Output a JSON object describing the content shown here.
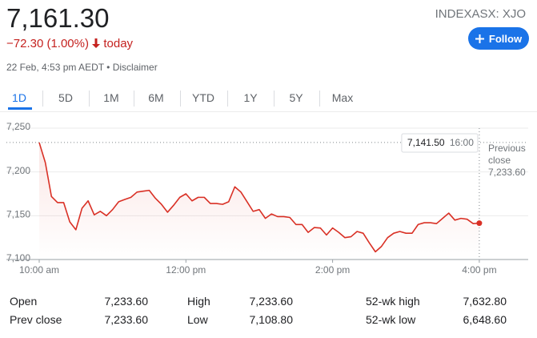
{
  "header": {
    "price": "7,161.30",
    "change": "−72.30 (1.00%)",
    "period": "today",
    "timestamp": "22 Feb, 4:53 pm AEDT • Disclaimer",
    "ticker": "INDEXASX: XJO",
    "follow": "Follow"
  },
  "tabs": [
    "1D",
    "5D",
    "1M",
    "6M",
    "YTD",
    "1Y",
    "5Y",
    "Max"
  ],
  "chart_data": {
    "type": "line",
    "x": [
      600,
      605,
      610,
      615,
      620,
      625,
      630,
      635,
      640,
      645,
      650,
      655,
      660,
      665,
      670,
      675,
      680,
      685,
      690,
      695,
      700,
      705,
      710,
      715,
      720,
      725,
      730,
      735,
      740,
      745,
      750,
      755,
      760,
      765,
      770,
      775,
      780,
      785,
      790,
      795,
      800,
      805,
      810,
      815,
      820,
      825,
      830,
      835,
      840,
      845,
      850,
      855,
      860,
      865,
      870,
      875,
      880,
      885,
      890,
      895,
      900,
      905,
      910,
      915,
      920,
      925,
      930,
      935,
      940,
      945,
      950,
      955,
      960
    ],
    "series": [
      {
        "name": "XJO",
        "color": "#d93025",
        "values": [
          7233.6,
          7210.7,
          7172,
          7165,
          7165,
          7143,
          7134,
          7158.5,
          7167,
          7151,
          7155,
          7150,
          7157,
          7166,
          7168.6,
          7171,
          7177,
          7178,
          7179,
          7170,
          7163,
          7154,
          7162,
          7171,
          7175,
          7167,
          7171,
          7171,
          7164,
          7164,
          7163,
          7166,
          7183,
          7177,
          7166,
          7155,
          7157,
          7147,
          7152,
          7149,
          7149,
          7148,
          7140,
          7140,
          7131,
          7136.5,
          7136,
          7128,
          7136,
          7131,
          7125,
          7126,
          7132,
          7130,
          7119,
          7108.8,
          7115,
          7125,
          7130,
          7132,
          7130,
          7130,
          7140,
          7142,
          7142,
          7141,
          7147,
          7153,
          7145,
          7147,
          7146,
          7141,
          7141.5
        ]
      }
    ],
    "xlim": [
      600,
      1000
    ],
    "xticks": [
      {
        "value": 600,
        "label": "10:00 am"
      },
      {
        "value": 720,
        "label": "12:00 pm"
      },
      {
        "value": 840,
        "label": "2:00 pm"
      },
      {
        "value": 960,
        "label": "4:00 pm"
      }
    ],
    "ylim": [
      7100,
      7250
    ],
    "yticks": [
      {
        "value": 7100,
        "label": "7,100"
      },
      {
        "value": 7150,
        "label": "7,150"
      },
      {
        "value": 7200,
        "label": "7,200"
      },
      {
        "value": 7250,
        "label": "7,250"
      }
    ],
    "grid": true,
    "previous_close": {
      "title": "Previous close",
      "value": 7233.6,
      "label": "7,233.60"
    },
    "tooltip": {
      "label": "7,141.50",
      "time": "16:00"
    }
  },
  "stats": {
    "rows": [
      [
        "Open",
        "7,233.60",
        "High",
        "7,233.60",
        "52-wk high",
        "7,632.80"
      ],
      [
        "Prev close",
        "7,233.60",
        "Low",
        "7,108.80",
        "52-wk low",
        "6,648.60"
      ]
    ]
  }
}
